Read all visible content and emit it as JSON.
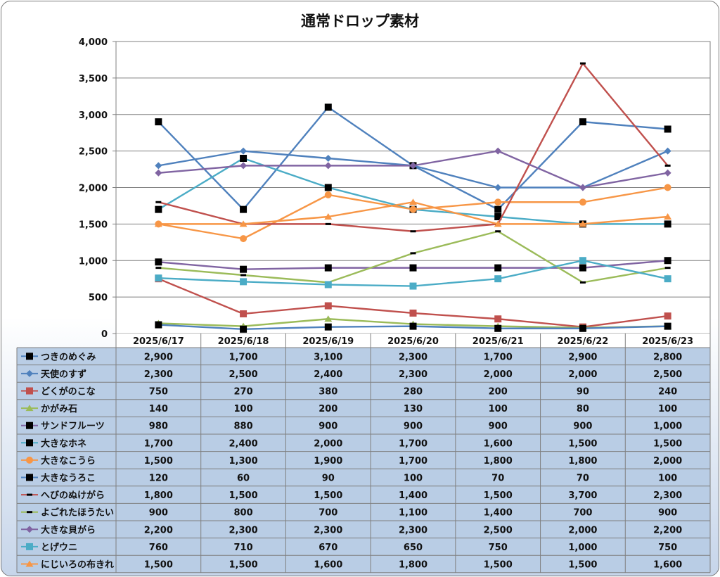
{
  "chart_data": {
    "type": "line",
    "title": "通常ドロップ素材",
    "categories": [
      "2025/6/17",
      "2025/6/18",
      "2025/6/19",
      "2025/6/20",
      "2025/6/21",
      "2025/6/22",
      "2025/6/23"
    ],
    "ylim": [
      0,
      4000
    ],
    "yticks": [
      "0",
      "500",
      "1,000",
      "1,500",
      "2,000",
      "2,500",
      "3,000",
      "3,500",
      "4,000"
    ],
    "grid": true,
    "legend": "data-table",
    "series": [
      {
        "name": "つきのめぐみ",
        "color": "#4f81bd",
        "marker": "square-black",
        "values": [
          2900,
          1700,
          3100,
          2300,
          1700,
          2900,
          2800
        ],
        "labels": [
          "2,900",
          "1,700",
          "3,100",
          "2,300",
          "1,700",
          "2,900",
          "2,800"
        ]
      },
      {
        "name": "天使のすず",
        "color": "#4f81bd",
        "marker": "diamond",
        "values": [
          2300,
          2500,
          2400,
          2300,
          2000,
          2000,
          2500
        ],
        "labels": [
          "2,300",
          "2,500",
          "2,400",
          "2,300",
          "2,000",
          "2,000",
          "2,500"
        ]
      },
      {
        "name": "どくがのこな",
        "color": "#c0504d",
        "marker": "square",
        "values": [
          750,
          270,
          380,
          280,
          200,
          90,
          240
        ],
        "labels": [
          "750",
          "270",
          "380",
          "280",
          "200",
          "90",
          "240"
        ]
      },
      {
        "name": "かがみ石",
        "color": "#9bbb59",
        "marker": "triangle",
        "values": [
          140,
          100,
          200,
          130,
          100,
          80,
          100
        ],
        "labels": [
          "140",
          "100",
          "200",
          "130",
          "100",
          "80",
          "100"
        ]
      },
      {
        "name": "サンドフルーツ",
        "color": "#8064a2",
        "marker": "square-black",
        "values": [
          980,
          880,
          900,
          900,
          900,
          900,
          1000
        ],
        "labels": [
          "980",
          "880",
          "900",
          "900",
          "900",
          "900",
          "1,000"
        ]
      },
      {
        "name": "大きなホネ",
        "color": "#4bacc6",
        "marker": "square-black",
        "values": [
          1700,
          2400,
          2000,
          1700,
          1600,
          1500,
          1500
        ],
        "labels": [
          "1,700",
          "2,400",
          "2,000",
          "1,700",
          "1,600",
          "1,500",
          "1,500"
        ]
      },
      {
        "name": "大きなこうら",
        "color": "#f79646",
        "marker": "circle",
        "values": [
          1500,
          1300,
          1900,
          1700,
          1800,
          1800,
          2000
        ],
        "labels": [
          "1,500",
          "1,300",
          "1,900",
          "1,700",
          "1,800",
          "1,800",
          "2,000"
        ]
      },
      {
        "name": "大きなうろこ",
        "color": "#4f81bd",
        "marker": "square-black",
        "values": [
          120,
          60,
          90,
          100,
          70,
          70,
          100
        ],
        "labels": [
          "120",
          "60",
          "90",
          "100",
          "70",
          "70",
          "100"
        ]
      },
      {
        "name": "へびのぬけがら",
        "color": "#c0504d",
        "marker": "dash",
        "values": [
          1800,
          1500,
          1500,
          1400,
          1500,
          3700,
          2300
        ],
        "labels": [
          "1,800",
          "1,500",
          "1,500",
          "1,400",
          "1,500",
          "3,700",
          "2,300"
        ]
      },
      {
        "name": "よごれたほうたい",
        "color": "#9bbb59",
        "marker": "dash",
        "values": [
          900,
          800,
          700,
          1100,
          1400,
          700,
          900
        ],
        "labels": [
          "900",
          "800",
          "700",
          "1,100",
          "1,400",
          "700",
          "900"
        ]
      },
      {
        "name": "大きな貝がら",
        "color": "#8064a2",
        "marker": "diamond",
        "values": [
          2200,
          2300,
          2300,
          2300,
          2500,
          2000,
          2200
        ],
        "labels": [
          "2,200",
          "2,300",
          "2,300",
          "2,300",
          "2,500",
          "2,000",
          "2,200"
        ]
      },
      {
        "name": "とげウニ",
        "color": "#4bacc6",
        "marker": "square",
        "values": [
          760,
          710,
          670,
          650,
          750,
          1000,
          750
        ],
        "labels": [
          "760",
          "710",
          "670",
          "650",
          "750",
          "1,000",
          "750"
        ]
      },
      {
        "name": "にじいろの布きれ",
        "color": "#f79646",
        "marker": "triangle",
        "values": [
          1500,
          1500,
          1600,
          1800,
          1500,
          1500,
          1600
        ],
        "labels": [
          "1,500",
          "1,500",
          "1,600",
          "1,800",
          "1,500",
          "1,500",
          "1,600"
        ]
      }
    ]
  }
}
